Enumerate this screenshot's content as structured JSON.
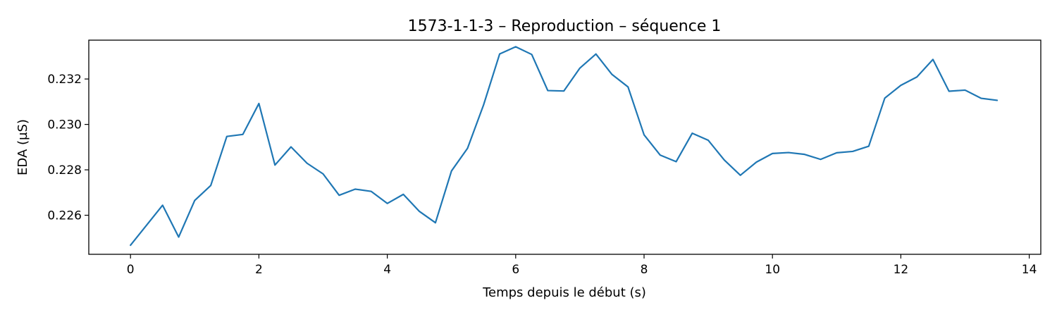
{
  "chart_data": {
    "type": "line",
    "title": "1573-1-1-3 – Reproduction – séquence 1",
    "xlabel": "Temps depuis le début (s)",
    "ylabel": "EDA (µS)",
    "xlim": [
      -0.65,
      14.18
    ],
    "ylim": [
      0.22428,
      0.23371
    ],
    "x_ticks": [
      0,
      2,
      4,
      6,
      8,
      10,
      12,
      14
    ],
    "x_tick_labels": [
      "0",
      "2",
      "4",
      "6",
      "8",
      "10",
      "12",
      "14"
    ],
    "y_ticks": [
      0.226,
      0.228,
      0.23,
      0.232
    ],
    "y_tick_labels": [
      "0.226",
      "0.228",
      "0.230",
      "0.232"
    ],
    "grid": false,
    "series": [
      {
        "color": "#1f77b4",
        "x": [
          0,
          0.25,
          0.5,
          0.75,
          1,
          1.25,
          1.5,
          1.75,
          2,
          2.25,
          2.5,
          2.75,
          3,
          3.25,
          3.5,
          3.75,
          4,
          4.25,
          4.5,
          4.75,
          5,
          5.25,
          5.5,
          5.75,
          6,
          6.25,
          6.5,
          6.75,
          7,
          7.25,
          7.5,
          7.75,
          8,
          8.25,
          8.5,
          8.75,
          9,
          9.25,
          9.5,
          9.75,
          10,
          10.25,
          10.5,
          10.75,
          11,
          11.25,
          11.5,
          11.75,
          12,
          12.25,
          12.5,
          12.75,
          13,
          13.25,
          13.5
        ],
        "y": [
          0.22468,
          0.22556,
          0.22644,
          0.22504,
          0.22665,
          0.22731,
          0.22947,
          0.22956,
          0.23092,
          0.22821,
          0.22901,
          0.22829,
          0.22782,
          0.22688,
          0.22715,
          0.22705,
          0.22652,
          0.22692,
          0.22617,
          0.22567,
          0.22795,
          0.22895,
          0.23086,
          0.2331,
          0.23342,
          0.23308,
          0.23149,
          0.23147,
          0.23248,
          0.2331,
          0.2322,
          0.23165,
          0.22954,
          0.22865,
          0.22836,
          0.22961,
          0.2293,
          0.22843,
          0.22776,
          0.22834,
          0.22872,
          0.22876,
          0.22868,
          0.22846,
          0.22875,
          0.22881,
          0.22904,
          0.23116,
          0.23172,
          0.23209,
          0.23286,
          0.23146,
          0.23151,
          0.23115,
          0.23106
        ]
      }
    ]
  }
}
